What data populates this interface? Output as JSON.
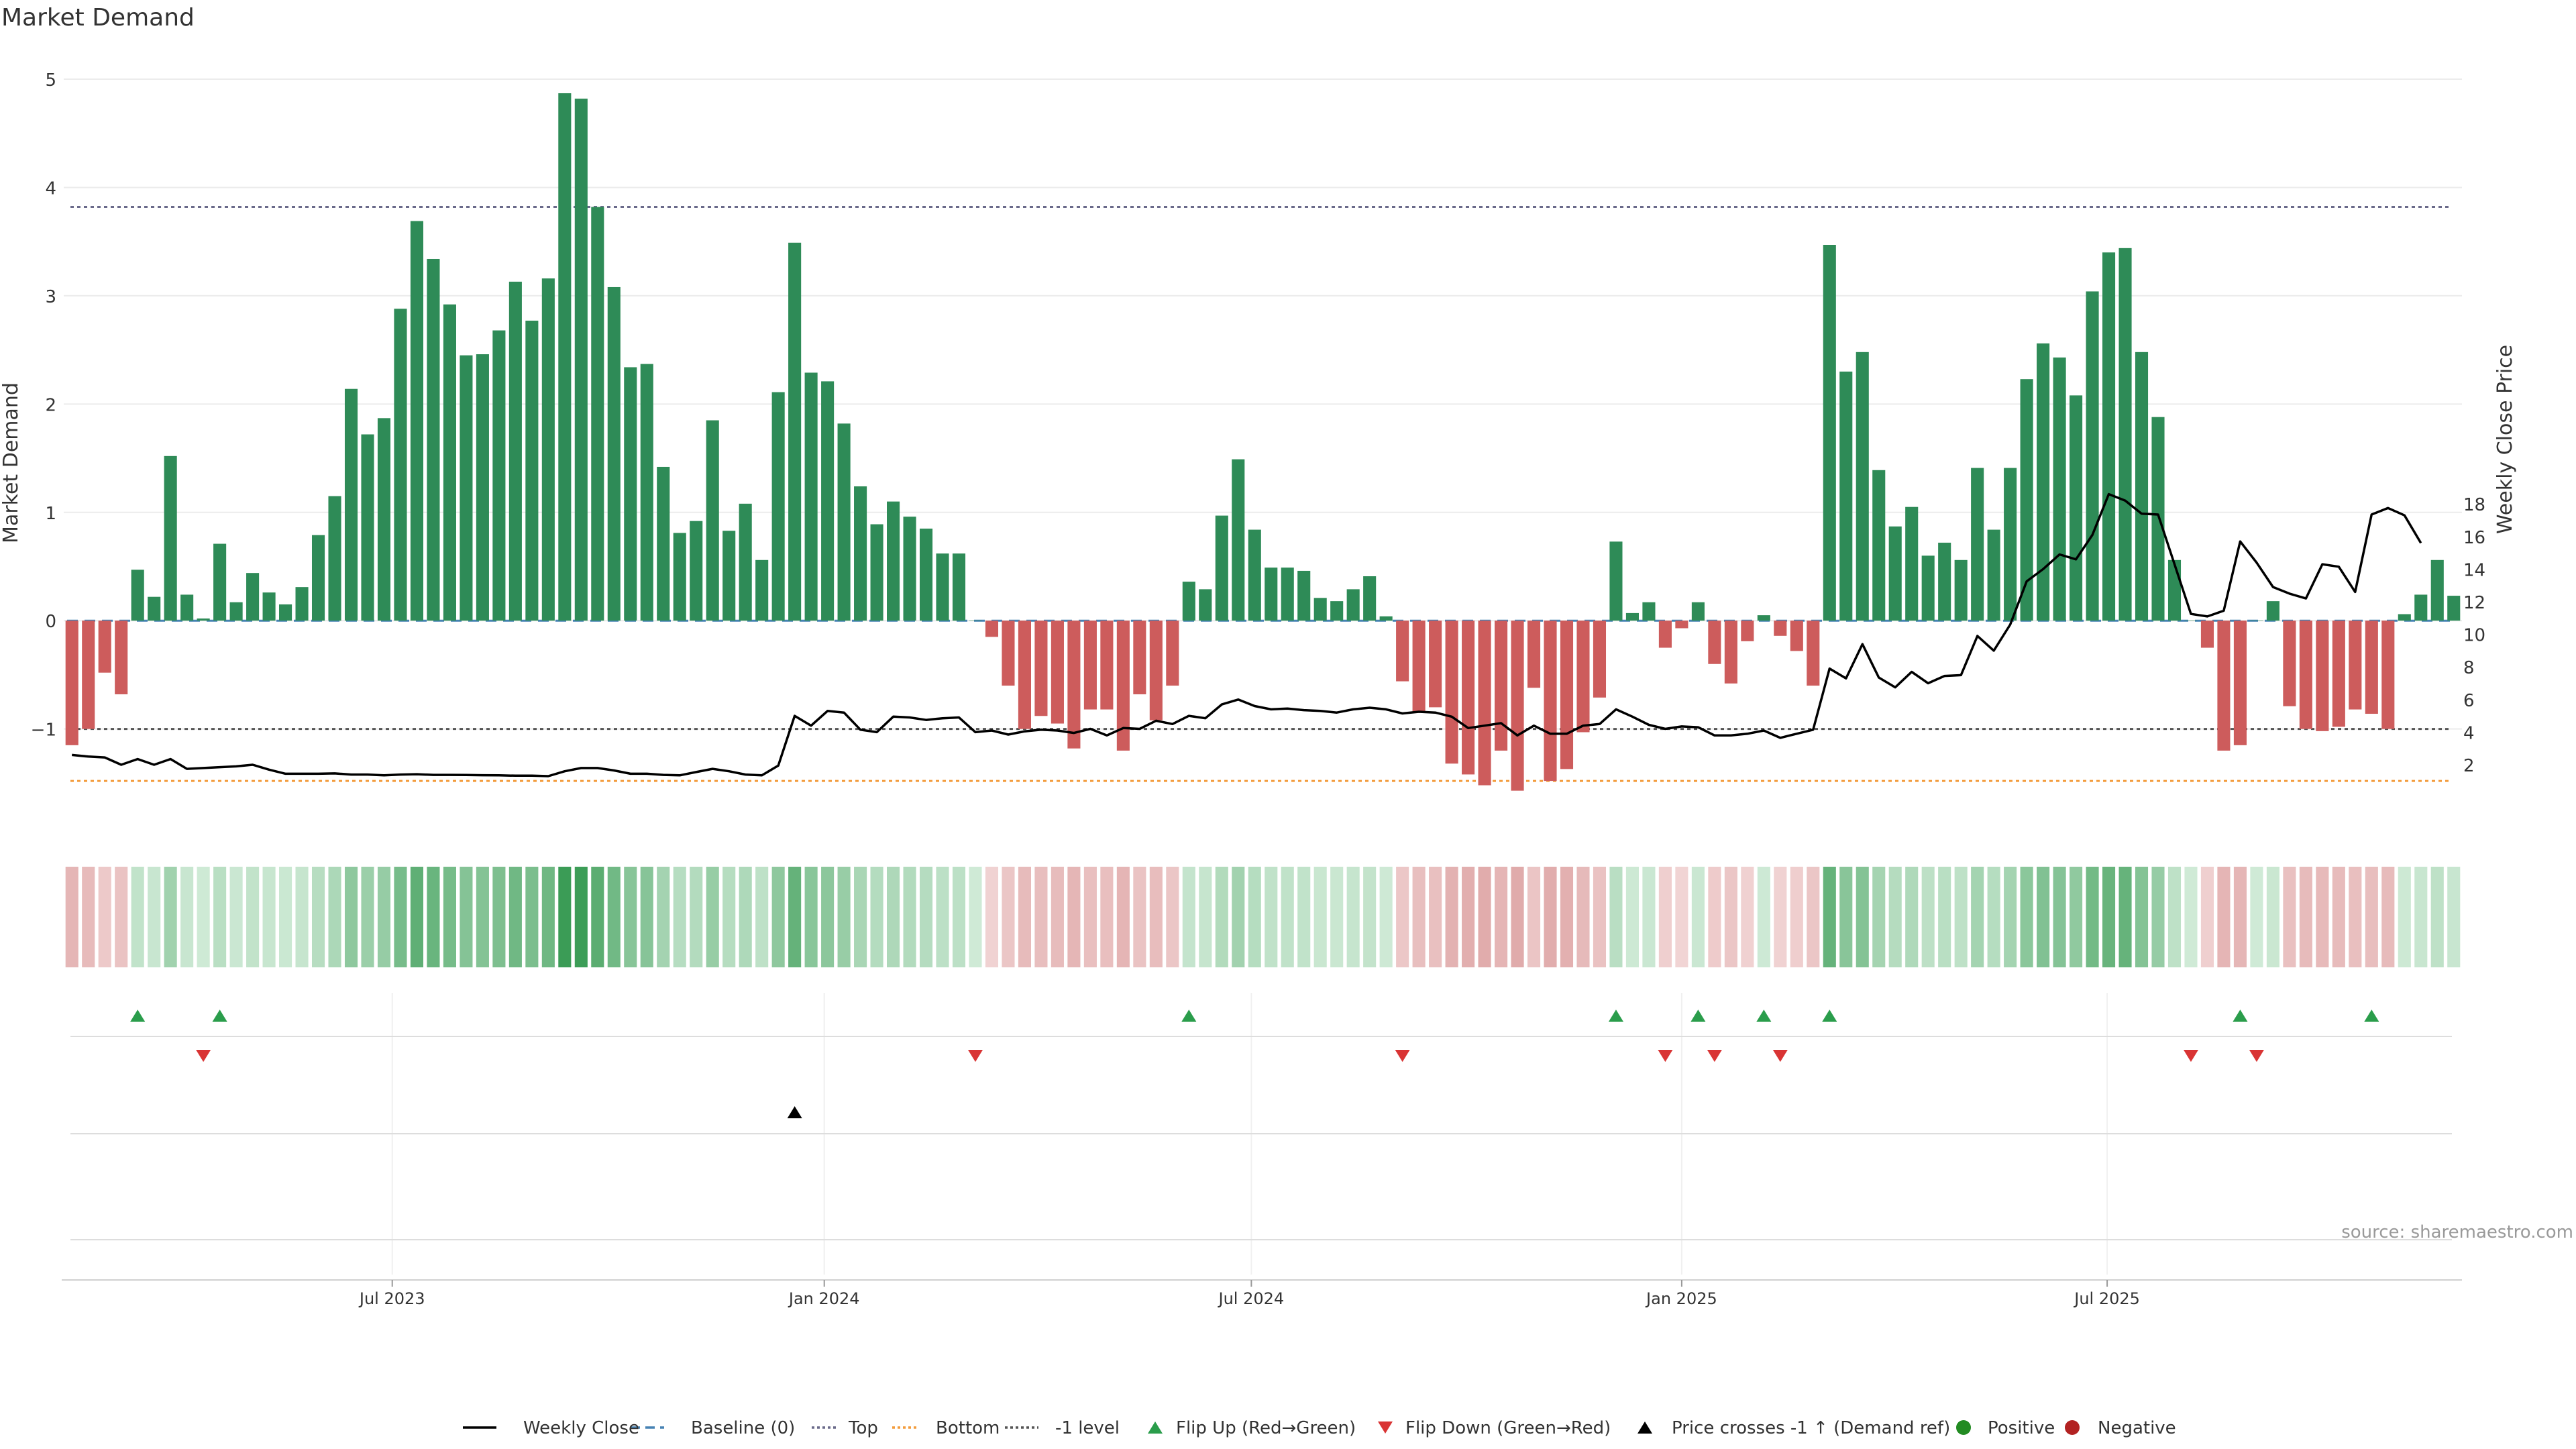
{
  "chart_data": {
    "type": "bar",
    "title": "Market Demand",
    "ylabel_left": "Market Demand",
    "ylabel_right": "Weekly Close Price",
    "ylim_left": [
      -1.95,
      5.0
    ],
    "ylim_right": [
      0,
      19
    ],
    "yticks_left": [
      5,
      4,
      3,
      2,
      1,
      0,
      -1
    ],
    "ytick_labels_left": [
      "5",
      "4",
      "3",
      "2",
      "1",
      "0",
      "−1"
    ],
    "yticks_right": [
      18,
      16,
      14,
      12,
      10,
      8,
      6,
      4,
      2
    ],
    "ytick_labels_right": [
      "18",
      "16",
      "14",
      "12",
      "10",
      "8",
      "6",
      "4",
      "2"
    ],
    "x_ticks": [
      {
        "label": "Jul 2023",
        "week": 20
      },
      {
        "label": "Jan 2024",
        "week": 46.3
      },
      {
        "label": "Jul 2024",
        "week": 72.3
      },
      {
        "label": "Jan 2025",
        "week": 98.5
      },
      {
        "label": "Jul 2025",
        "week": 124.4
      }
    ],
    "reference_lines": {
      "top": 3.82,
      "bottom": -1.48,
      "minus_one_level": -1.0,
      "baseline": 0
    },
    "demand": [
      -1.15,
      -1.0,
      -0.48,
      -0.68,
      0.47,
      0.22,
      1.52,
      0.24,
      0.02,
      0.71,
      0.17,
      0.44,
      0.26,
      0.15,
      0.31,
      0.79,
      1.15,
      2.14,
      1.72,
      1.87,
      2.88,
      3.69,
      3.34,
      2.92,
      2.45,
      2.46,
      2.68,
      3.13,
      2.77,
      3.16,
      4.87,
      4.82,
      3.82,
      3.08,
      2.34,
      2.37,
      1.42,
      0.81,
      0.92,
      1.85,
      0.83,
      1.08,
      0.56,
      2.11,
      3.49,
      2.29,
      2.21,
      1.82,
      1.24,
      0.89,
      1.1,
      0.96,
      0.85,
      0.62,
      0.62,
      0.0,
      -0.15,
      -0.6,
      -1.0,
      -0.88,
      -0.95,
      -1.18,
      -0.82,
      -0.82,
      -1.2,
      -0.68,
      -0.92,
      -0.6,
      0.36,
      0.29,
      0.97,
      1.49,
      0.84,
      0.49,
      0.49,
      0.46,
      0.21,
      0.18,
      0.29,
      0.41,
      0.04,
      -0.56,
      -0.85,
      -0.8,
      -1.32,
      -1.42,
      -1.52,
      -1.2,
      -1.57,
      -0.62,
      -1.48,
      -1.37,
      -1.03,
      -0.71,
      0.73,
      0.07,
      0.17,
      -0.25,
      -0.07,
      0.17,
      -0.4,
      -0.58,
      -0.19,
      0.05,
      -0.14,
      -0.28,
      -0.6,
      3.47,
      2.3,
      2.48,
      1.39,
      0.87,
      1.05,
      0.6,
      0.72,
      0.56,
      1.41,
      0.84,
      1.41,
      2.23,
      2.56,
      2.43,
      2.08,
      3.04,
      3.4,
      3.44,
      2.48,
      1.88,
      0.56,
      0.0,
      -0.25,
      -1.2,
      -1.15,
      0.0,
      0.18,
      -0.79,
      -1.0,
      -1.02,
      -0.98,
      -0.82,
      -0.86,
      -1.0,
      0.06,
      0.24,
      0.56,
      0.23
    ],
    "weekly_close": [
      2.6,
      2.5,
      2.45,
      2.0,
      2.35,
      2.0,
      2.35,
      1.75,
      1.8,
      1.85,
      1.9,
      2.0,
      1.7,
      1.45,
      1.45,
      1.45,
      1.47,
      1.4,
      1.4,
      1.35,
      1.4,
      1.42,
      1.38,
      1.38,
      1.37,
      1.36,
      1.35,
      1.33,
      1.33,
      1.3,
      1.6,
      1.8,
      1.8,
      1.65,
      1.45,
      1.45,
      1.38,
      1.35,
      1.55,
      1.75,
      1.6,
      1.4,
      1.35,
      1.95,
      5.0,
      4.4,
      5.3,
      5.2,
      4.15,
      4.0,
      4.95,
      4.9,
      4.75,
      4.85,
      4.9,
      4.0,
      4.1,
      3.85,
      4.05,
      4.15,
      4.1,
      3.95,
      4.2,
      3.8,
      4.25,
      4.2,
      4.7,
      4.5,
      5.0,
      4.85,
      5.7,
      6.0,
      5.6,
      5.4,
      5.45,
      5.35,
      5.3,
      5.2,
      5.4,
      5.5,
      5.4,
      5.15,
      5.25,
      5.2,
      4.95,
      4.25,
      4.4,
      4.55,
      3.8,
      4.4,
      3.9,
      3.9,
      4.4,
      4.5,
      5.4,
      4.95,
      4.45,
      4.2,
      4.35,
      4.3,
      3.8,
      3.8,
      3.9,
      4.1,
      3.65,
      3.9,
      4.15,
      7.9,
      7.3,
      9.4,
      7.35,
      6.75,
      7.7,
      7.0,
      7.45,
      7.5,
      9.9,
      9.0,
      10.6,
      13.25,
      14.0,
      14.9,
      14.6,
      16.1,
      18.6,
      18.2,
      17.4,
      17.35,
      14.3,
      11.25,
      11.1,
      11.45,
      15.7,
      14.4,
      12.9,
      12.5,
      12.2,
      14.3,
      14.15,
      12.6,
      17.35,
      17.75,
      17.3,
      15.6
    ],
    "flip_up_weeks": [
      4.5,
      9.5,
      68.5,
      94.5,
      99.5,
      103.5,
      107.5,
      132.5,
      140.5
    ],
    "flip_down_weeks": [
      8.5,
      55.5,
      81.5,
      97.5,
      100.5,
      104.5,
      129.5,
      133.5
    ],
    "price_cross_weeks": [
      44.5
    ],
    "source": "source: sharemaestro.com",
    "legend": [
      "Weekly Close",
      "Baseline (0)",
      "Top",
      "Bottom",
      "-1 level",
      "Flip Up (Red→Green)",
      "Flip Down (Green→Red)",
      "Price crosses -1 ↑ (Demand ref)",
      "Positive",
      "Negative"
    ],
    "colors": {
      "positive_bar": "#2e8b57",
      "negative_bar": "#cd5c5c",
      "price_line": "#000000",
      "baseline": "#4682b4",
      "top_line": "#6a6a8a",
      "bottom_line": "#f39c3c",
      "minus_one_line": "#555555",
      "flip_up": "#2a9d4b",
      "flip_down": "#d93434",
      "positive_marker": "#228b22",
      "negative_marker": "#b22222"
    }
  }
}
